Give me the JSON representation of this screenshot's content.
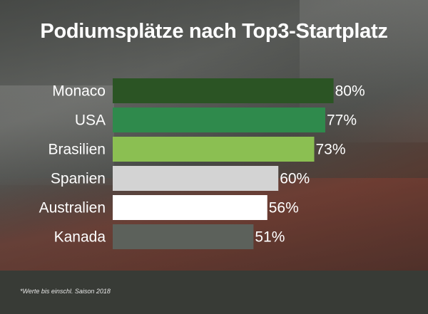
{
  "chart_data": {
    "type": "bar",
    "orientation": "horizontal",
    "title": "Podiumsplätze nach Top3-Startplatz",
    "categories": [
      "Monaco",
      "USA",
      "Brasilien",
      "Spanien",
      "Australien",
      "Kanada"
    ],
    "values": [
      80,
      77,
      73,
      60,
      56,
      51
    ],
    "value_labels": [
      "80%",
      "77%",
      "73%",
      "60%",
      "56%",
      "51%"
    ],
    "colors": [
      "#2b5424",
      "#2f8a4c",
      "#8bbf52",
      "#d3d3d3",
      "#ffffff",
      "#5c615b"
    ],
    "xlim": [
      0,
      100
    ],
    "grid": false,
    "footnote": "*Werte bis einschl. Saison 2018"
  }
}
